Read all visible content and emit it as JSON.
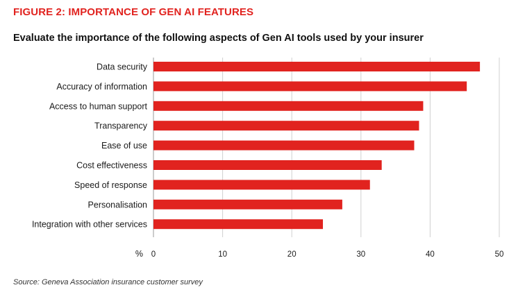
{
  "figure_label": "FIGURE 2: IMPORTANCE OF GEN AI FEATURES",
  "source": "Source: Geneva Association insurance customer survey",
  "colors": {
    "accent": "#e1231f",
    "bar": "#e1231f",
    "grid": "#d0d0d0",
    "axis": "#999999"
  },
  "chart_data": {
    "type": "bar",
    "orientation": "horizontal",
    "title": "Evaluate the importance of the following aspects of Gen AI tools used by your insurer",
    "xlabel": "%",
    "ylabel": "",
    "xlim": [
      0,
      50
    ],
    "xticks": [
      0,
      10,
      20,
      30,
      40,
      50
    ],
    "grid": true,
    "categories": [
      "Data security",
      "Accuracy of information",
      "Access to human support",
      "Transparency",
      "Ease of use",
      "Cost effectiveness",
      "Speed of response",
      "Personalisation",
      "Integration with other services"
    ],
    "values": [
      47.2,
      45.3,
      39.0,
      38.4,
      37.7,
      33.0,
      31.3,
      27.3,
      24.5
    ]
  }
}
